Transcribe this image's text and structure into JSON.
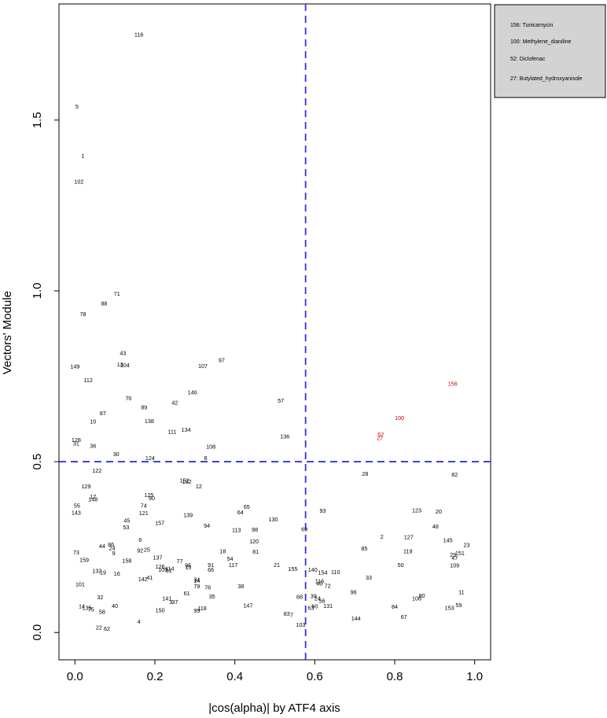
{
  "chart_data": {
    "type": "scatter",
    "xlabel": "|cos(alpha)| by ATF4 axis",
    "ylabel": "Vectors' Module",
    "xlim": [
      -0.04,
      1.04
    ],
    "ylim": [
      -0.08,
      1.84
    ],
    "x_ticks": [
      "0.0",
      "0.2",
      "0.4",
      "0.6",
      "0.8",
      "1.0"
    ],
    "x_tick_values": [
      0,
      0.2,
      0.4,
      0.6,
      0.8,
      1.0
    ],
    "y_ticks": [
      "0.0",
      "0.5",
      "1.0",
      "1.5"
    ],
    "y_tick_values": [
      0,
      0.5,
      1.0,
      1.5
    ],
    "grid": false,
    "reference_lines": {
      "vertical_x": 0.577,
      "horizontal_y": 0.5,
      "color": "#3333dd",
      "style": "dashed"
    },
    "legend": {
      "position": "top-right, outside plot",
      "entries": [
        "156: Tunicamycin",
        "100: Methylene_dianiline",
        "52: Diclofenac",
        "27: Butylated_hydroxyanisole"
      ]
    },
    "colors": {
      "normal": "#000000",
      "highlight": "#cc0000",
      "legend_bg": "#d3d3d3"
    },
    "highlighted": [
      "156",
      "100",
      "52",
      "27"
    ],
    "points": [
      {
        "l": "116",
        "x": 0.16,
        "y": 1.75
      },
      {
        "l": "5",
        "x": 0.005,
        "y": 1.54
      },
      {
        "l": "1",
        "x": 0.02,
        "y": 1.396
      },
      {
        "l": "102",
        "x": 0.01,
        "y": 1.32
      },
      {
        "l": "71",
        "x": 0.105,
        "y": 0.992
      },
      {
        "l": "88",
        "x": 0.073,
        "y": 0.963
      },
      {
        "l": "78",
        "x": 0.02,
        "y": 0.932
      },
      {
        "l": "43",
        "x": 0.12,
        "y": 0.818
      },
      {
        "l": "97",
        "x": 0.367,
        "y": 0.797
      },
      {
        "l": "149",
        "x": 0.0,
        "y": 0.779
      },
      {
        "l": "13",
        "x": 0.113,
        "y": 0.785
      },
      {
        "l": "104",
        "x": 0.125,
        "y": 0.782
      },
      {
        "l": "107",
        "x": 0.32,
        "y": 0.78
      },
      {
        "l": "112",
        "x": 0.033,
        "y": 0.738
      },
      {
        "l": "146",
        "x": 0.294,
        "y": 0.703
      },
      {
        "l": "70",
        "x": 0.134,
        "y": 0.686
      },
      {
        "l": "42",
        "x": 0.25,
        "y": 0.673
      },
      {
        "l": "57",
        "x": 0.515,
        "y": 0.678
      },
      {
        "l": "89",
        "x": 0.173,
        "y": 0.659
      },
      {
        "l": "87",
        "x": 0.07,
        "y": 0.642
      },
      {
        "l": "10",
        "x": 0.045,
        "y": 0.617
      },
      {
        "l": "138",
        "x": 0.186,
        "y": 0.619
      },
      {
        "l": "134",
        "x": 0.278,
        "y": 0.593
      },
      {
        "l": "111",
        "x": 0.243,
        "y": 0.588
      },
      {
        "l": "136",
        "x": 0.525,
        "y": 0.574
      },
      {
        "l": "128",
        "x": 0.003,
        "y": 0.563
      },
      {
        "l": "31",
        "x": 0.003,
        "y": 0.553
      },
      {
        "l": "36",
        "x": 0.045,
        "y": 0.546
      },
      {
        "l": "108",
        "x": 0.34,
        "y": 0.544
      },
      {
        "l": "30",
        "x": 0.103,
        "y": 0.522
      },
      {
        "l": "124",
        "x": 0.188,
        "y": 0.51
      },
      {
        "l": "8",
        "x": 0.327,
        "y": 0.51
      },
      {
        "l": "122",
        "x": 0.055,
        "y": 0.474
      },
      {
        "l": "152",
        "x": 0.274,
        "y": 0.445
      },
      {
        "l": "132",
        "x": 0.28,
        "y": 0.442
      },
      {
        "l": "12",
        "x": 0.31,
        "y": 0.428
      },
      {
        "l": "129",
        "x": 0.028,
        "y": 0.428
      },
      {
        "l": "125",
        "x": 0.185,
        "y": 0.402
      },
      {
        "l": "17",
        "x": 0.045,
        "y": 0.398
      },
      {
        "l": "148",
        "x": 0.045,
        "y": 0.39
      },
      {
        "l": "90",
        "x": 0.192,
        "y": 0.393
      },
      {
        "l": "55",
        "x": 0.005,
        "y": 0.371
      },
      {
        "l": "74",
        "x": 0.172,
        "y": 0.371
      },
      {
        "l": "143",
        "x": 0.003,
        "y": 0.35
      },
      {
        "l": "121",
        "x": 0.172,
        "y": 0.349
      },
      {
        "l": "65",
        "x": 0.43,
        "y": 0.368
      },
      {
        "l": "64",
        "x": 0.414,
        "y": 0.352
      },
      {
        "l": "139",
        "x": 0.283,
        "y": 0.344
      },
      {
        "l": "93",
        "x": 0.62,
        "y": 0.356
      },
      {
        "l": "123",
        "x": 0.855,
        "y": 0.357
      },
      {
        "l": "20",
        "x": 0.91,
        "y": 0.354
      },
      {
        "l": "130",
        "x": 0.496,
        "y": 0.331
      },
      {
        "l": "45",
        "x": 0.13,
        "y": 0.328
      },
      {
        "l": "157",
        "x": 0.212,
        "y": 0.321
      },
      {
        "l": "48",
        "x": 0.902,
        "y": 0.31
      },
      {
        "l": "53",
        "x": 0.128,
        "y": 0.308
      },
      {
        "l": "94",
        "x": 0.33,
        "y": 0.313
      },
      {
        "l": "113",
        "x": 0.404,
        "y": 0.3
      },
      {
        "l": "98",
        "x": 0.45,
        "y": 0.301
      },
      {
        "l": "69",
        "x": 0.574,
        "y": 0.302
      },
      {
        "l": "2",
        "x": 0.768,
        "y": 0.28
      },
      {
        "l": "127",
        "x": 0.835,
        "y": 0.279
      },
      {
        "l": "6",
        "x": 0.163,
        "y": 0.271
      },
      {
        "l": "120",
        "x": 0.448,
        "y": 0.266
      },
      {
        "l": "145",
        "x": 0.933,
        "y": 0.27
      },
      {
        "l": "86",
        "x": 0.09,
        "y": 0.257
      },
      {
        "l": "44",
        "x": 0.068,
        "y": 0.253
      },
      {
        "l": "24",
        "x": 0.093,
        "y": 0.247
      },
      {
        "l": "23",
        "x": 0.98,
        "y": 0.256
      },
      {
        "l": "85",
        "x": 0.724,
        "y": 0.246
      },
      {
        "l": "92",
        "x": 0.163,
        "y": 0.24
      },
      {
        "l": "25",
        "x": 0.18,
        "y": 0.242
      },
      {
        "l": "18",
        "x": 0.37,
        "y": 0.238
      },
      {
        "l": "81",
        "x": 0.452,
        "y": 0.236
      },
      {
        "l": "119",
        "x": 0.833,
        "y": 0.238
      },
      {
        "l": "151",
        "x": 0.963,
        "y": 0.232
      },
      {
        "l": "73",
        "x": 0.003,
        "y": 0.234
      },
      {
        "l": "9",
        "x": 0.097,
        "y": 0.232
      },
      {
        "l": "29",
        "x": 0.946,
        "y": 0.227
      },
      {
        "l": "137",
        "x": 0.207,
        "y": 0.219
      },
      {
        "l": "47",
        "x": 0.95,
        "y": 0.218
      },
      {
        "l": "54",
        "x": 0.388,
        "y": 0.216
      },
      {
        "l": "159",
        "x": 0.023,
        "y": 0.212
      },
      {
        "l": "158",
        "x": 0.13,
        "y": 0.21
      },
      {
        "l": "77",
        "x": 0.262,
        "y": 0.209
      },
      {
        "l": "109",
        "x": 0.95,
        "y": 0.196
      },
      {
        "l": "50",
        "x": 0.815,
        "y": 0.197
      },
      {
        "l": "91",
        "x": 0.34,
        "y": 0.197
      },
      {
        "l": "117",
        "x": 0.396,
        "y": 0.197
      },
      {
        "l": "21",
        "x": 0.505,
        "y": 0.197
      },
      {
        "l": "126",
        "x": 0.213,
        "y": 0.193
      },
      {
        "l": "95",
        "x": 0.283,
        "y": 0.196
      },
      {
        "l": "15",
        "x": 0.283,
        "y": 0.191
      },
      {
        "l": "155",
        "x": 0.545,
        "y": 0.186
      },
      {
        "l": "114",
        "x": 0.237,
        "y": 0.187
      },
      {
        "l": "105",
        "x": 0.22,
        "y": 0.184
      },
      {
        "l": "51",
        "x": 0.235,
        "y": 0.181
      },
      {
        "l": "66",
        "x": 0.34,
        "y": 0.184
      },
      {
        "l": "140",
        "x": 0.595,
        "y": 0.184
      },
      {
        "l": "132",
        "x": 0.055,
        "y": 0.18
      },
      {
        "l": "19",
        "x": 0.07,
        "y": 0.176
      },
      {
        "l": "16",
        "x": 0.105,
        "y": 0.172
      },
      {
        "l": "154",
        "x": 0.62,
        "y": 0.176
      },
      {
        "l": "110",
        "x": 0.652,
        "y": 0.177
      },
      {
        "l": "33",
        "x": 0.735,
        "y": 0.161
      },
      {
        "l": "41",
        "x": 0.187,
        "y": 0.161
      },
      {
        "l": "142",
        "x": 0.17,
        "y": 0.156
      },
      {
        "l": "34",
        "x": 0.305,
        "y": 0.155
      },
      {
        "l": "14",
        "x": 0.305,
        "y": 0.151
      },
      {
        "l": "116",
        "x": 0.612,
        "y": 0.15
      },
      {
        "l": "40",
        "x": 0.612,
        "y": 0.143
      },
      {
        "l": "101",
        "x": 0.013,
        "y": 0.141
      },
      {
        "l": "72",
        "x": 0.632,
        "y": 0.136
      },
      {
        "l": "38",
        "x": 0.415,
        "y": 0.135
      },
      {
        "l": "79",
        "x": 0.305,
        "y": 0.135
      },
      {
        "l": "76",
        "x": 0.332,
        "y": 0.132
      },
      {
        "l": "96",
        "x": 0.697,
        "y": 0.118
      },
      {
        "l": "11",
        "x": 0.967,
        "y": 0.118
      },
      {
        "l": "61",
        "x": 0.28,
        "y": 0.114
      },
      {
        "l": "80",
        "x": 0.868,
        "y": 0.108
      },
      {
        "l": "35",
        "x": 0.343,
        "y": 0.105
      },
      {
        "l": "68",
        "x": 0.562,
        "y": 0.104
      },
      {
        "l": "39",
        "x": 0.597,
        "y": 0.107
      },
      {
        "l": "24",
        "x": 0.607,
        "y": 0.1
      },
      {
        "l": "56",
        "x": 0.618,
        "y": 0.093
      },
      {
        "l": "106",
        "x": 0.855,
        "y": 0.1
      },
      {
        "l": "32",
        "x": 0.063,
        "y": 0.103
      },
      {
        "l": "141",
        "x": 0.23,
        "y": 0.1
      },
      {
        "l": "3",
        "x": 0.24,
        "y": 0.089
      },
      {
        "l": "37",
        "x": 0.25,
        "y": 0.089
      },
      {
        "l": "147",
        "x": 0.433,
        "y": 0.079
      },
      {
        "l": "131",
        "x": 0.633,
        "y": 0.078
      },
      {
        "l": "59",
        "x": 0.96,
        "y": 0.08
      },
      {
        "l": "40",
        "x": 0.1,
        "y": 0.078
      },
      {
        "l": "60",
        "x": 0.6,
        "y": 0.076
      },
      {
        "l": "84",
        "x": 0.8,
        "y": 0.075
      },
      {
        "l": "14",
        "x": 0.017,
        "y": 0.077
      },
      {
        "l": "135",
        "x": 0.03,
        "y": 0.072
      },
      {
        "l": "63",
        "x": 0.59,
        "y": 0.072
      },
      {
        "l": "153",
        "x": 0.937,
        "y": 0.072
      },
      {
        "l": "118",
        "x": 0.318,
        "y": 0.071
      },
      {
        "l": "99",
        "x": 0.305,
        "y": 0.064
      },
      {
        "l": "75",
        "x": 0.04,
        "y": 0.067
      },
      {
        "l": "150",
        "x": 0.213,
        "y": 0.065
      },
      {
        "l": "58",
        "x": 0.068,
        "y": 0.06
      },
      {
        "l": "83",
        "x": 0.53,
        "y": 0.055
      },
      {
        "l": "7",
        "x": 0.542,
        "y": 0.051
      },
      {
        "l": "67",
        "x": 0.823,
        "y": 0.045
      },
      {
        "l": "144",
        "x": 0.703,
        "y": 0.041
      },
      {
        "l": "4",
        "x": 0.16,
        "y": 0.032
      },
      {
        "l": "103",
        "x": 0.565,
        "y": 0.023
      },
      {
        "l": "22",
        "x": 0.06,
        "y": 0.014
      },
      {
        "l": "62",
        "x": 0.08,
        "y": 0.011
      },
      {
        "l": "156",
        "x": 0.945,
        "y": 0.728
      },
      {
        "l": "100",
        "x": 0.812,
        "y": 0.628
      },
      {
        "l": "52",
        "x": 0.765,
        "y": 0.579
      },
      {
        "l": "27",
        "x": 0.763,
        "y": 0.569
      },
      {
        "l": "28",
        "x": 0.726,
        "y": 0.464
      },
      {
        "l": "82",
        "x": 0.95,
        "y": 0.462
      }
    ]
  }
}
